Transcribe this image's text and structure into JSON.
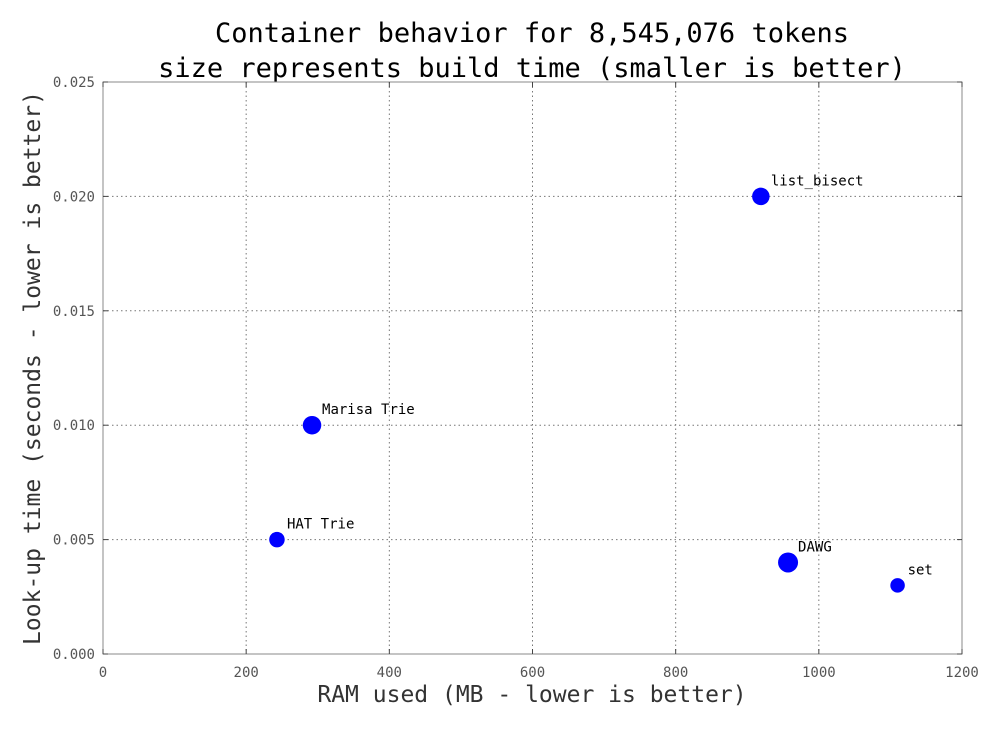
{
  "chart_data": {
    "type": "scatter",
    "title": "Container behavior for 8,545,076 tokens",
    "subtitle": "size represents build time (smaller is better)",
    "xlabel": "RAM used (MB - lower is better)",
    "ylabel": "Look-up time (seconds - lower is better)",
    "xlim": [
      0,
      1200
    ],
    "ylim": [
      0,
      0.025
    ],
    "xticks": [
      "0",
      "200",
      "400",
      "600",
      "800",
      "1000",
      "1200"
    ],
    "yticks": [
      "0.000",
      "0.005",
      "0.010",
      "0.015",
      "0.020",
      "0.025"
    ],
    "grid": true,
    "point_color": "#0000ff",
    "points": [
      {
        "label": "HAT Trie",
        "x": 243,
        "y": 0.005,
        "build_time_size": 0.55
      },
      {
        "label": "Marisa Trie",
        "x": 292,
        "y": 0.01,
        "build_time_size": 0.85
      },
      {
        "label": "list_bisect",
        "x": 919,
        "y": 0.02,
        "build_time_size": 0.75
      },
      {
        "label": "DAWG",
        "x": 957,
        "y": 0.004,
        "build_time_size": 1.0
      },
      {
        "label": "set",
        "x": 1110,
        "y": 0.003,
        "build_time_size": 0.45
      }
    ]
  }
}
